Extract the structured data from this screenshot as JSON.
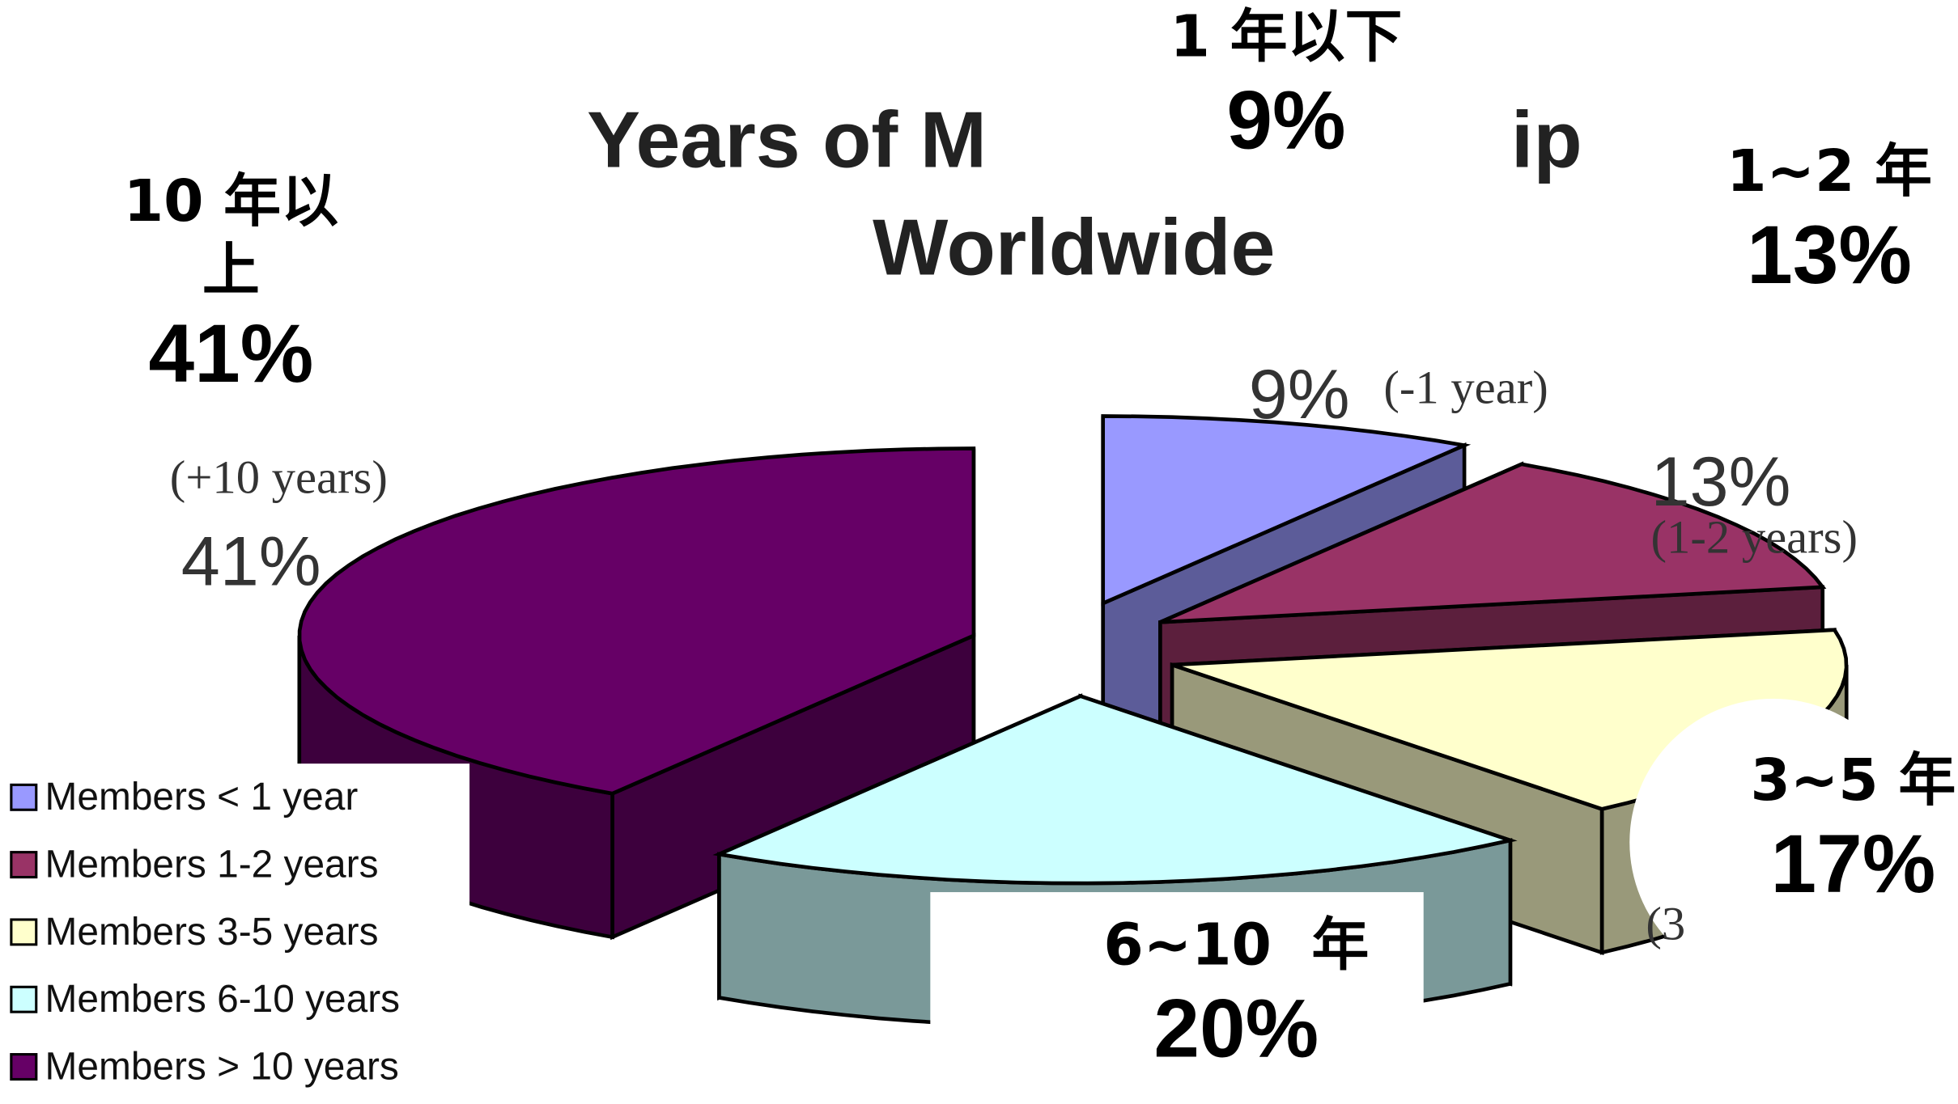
{
  "chart_data": {
    "type": "pie",
    "title_line1": "Years of Membership",
    "title_line2": "Worldwide",
    "title_line1_visible_left": "Years of M",
    "title_line1_visible_right": "ip",
    "slices": [
      {
        "key": "lt1",
        "value": 9,
        "color": "#9999ff",
        "side_color": "#5c5c99",
        "legend": "Members < 1 year",
        "pct_label": "9%",
        "years_label": "(-1 year)",
        "zh_label": "1 年以下",
        "zh_pct": "9%"
      },
      {
        "key": "y1_2",
        "value": 13,
        "color": "#993366",
        "side_color": "#5c1f3d",
        "legend": "Members 1-2 years",
        "pct_label": "13%",
        "years_label": "(1-2 years)",
        "zh_label": "1~2 年",
        "zh_pct": "13%"
      },
      {
        "key": "y3_5",
        "value": 17,
        "color": "#ffffcc",
        "side_color": "#99997a",
        "legend": "Members 3-5 years",
        "pct_label": "",
        "years_label": "(3",
        "zh_label": "3~5 年",
        "zh_pct": "17%"
      },
      {
        "key": "y6_10",
        "value": 20,
        "color": "#ccffff",
        "side_color": "#7a9999",
        "legend": "Members 6-10 years",
        "pct_label": "",
        "years_label": "",
        "zh_label": "6~10  年",
        "zh_pct": "20%"
      },
      {
        "key": "gt10",
        "value": 41,
        "color": "#660066",
        "side_color": "#3d003d",
        "legend": "Members > 10 years",
        "pct_label": "41%",
        "years_label": "(+10 years)",
        "zh_label": "10 年以上",
        "zh_pct": "41%"
      }
    ],
    "legend_position": "bottom-left",
    "exploded": true
  }
}
